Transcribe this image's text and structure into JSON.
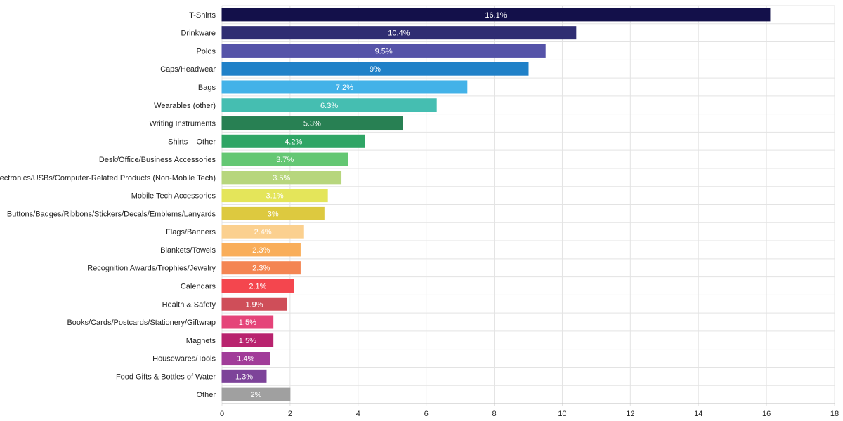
{
  "chart_data": {
    "type": "bar",
    "orientation": "horizontal",
    "categories": [
      "T-Shirts",
      "Drinkware",
      "Polos",
      "Caps/Headwear",
      "Bags",
      "Wearables (other)",
      "Writing Instruments",
      "Shirts – Other",
      "Desk/Office/Business Accessories",
      "Electronics/USBs/Computer-Related Products (Non-Mobile Tech)",
      "Mobile Tech Accessories",
      "Buttons/Badges/Ribbons/Stickers/Decals/Emblems/Lanyards",
      "Flags/Banners",
      "Blankets/Towels",
      "Recognition Awards/Trophies/Jewelry",
      "Calendars",
      "Health & Safety",
      "Books/Cards/Postcards/Stationery/Giftwrap",
      "Magnets",
      "Housewares/Tools",
      "Food Gifts & Bottles of Water",
      "Other"
    ],
    "values": [
      16.1,
      10.4,
      9.5,
      9,
      7.2,
      6.3,
      5.3,
      4.2,
      3.7,
      3.5,
      3.1,
      3,
      2.4,
      2.3,
      2.3,
      2.1,
      1.9,
      1.5,
      1.5,
      1.4,
      1.3,
      2
    ],
    "data_labels": [
      "16.1%",
      "10.4%",
      "9.5%",
      "9%",
      "7.2%",
      "6.3%",
      "5.3%",
      "4.2%",
      "3.7%",
      "3.5%",
      "3.1%",
      "3%",
      "2.4%",
      "2.3%",
      "2.3%",
      "2.1%",
      "1.9%",
      "1.5%",
      "1.5%",
      "1.4%",
      "1.3%",
      "2%"
    ],
    "colors": [
      "#13104a",
      "#2f2d72",
      "#5553a8",
      "#2081c8",
      "#43b2e8",
      "#45beb1",
      "#288053",
      "#2fa565",
      "#64c773",
      "#b7d67d",
      "#e4e55a",
      "#ddc93f",
      "#fbd08f",
      "#f9ae5a",
      "#f48552",
      "#f4464e",
      "#cf4e59",
      "#e54479",
      "#b8236e",
      "#a13c99",
      "#7d4399",
      "#a0a0a0"
    ],
    "x_ticks": [
      "0",
      "2",
      "4",
      "6",
      "8",
      "10",
      "12",
      "14",
      "16",
      "18"
    ],
    "xlim": [
      0,
      18
    ],
    "grid": true,
    "title": "",
    "xlabel": "",
    "ylabel": ""
  }
}
